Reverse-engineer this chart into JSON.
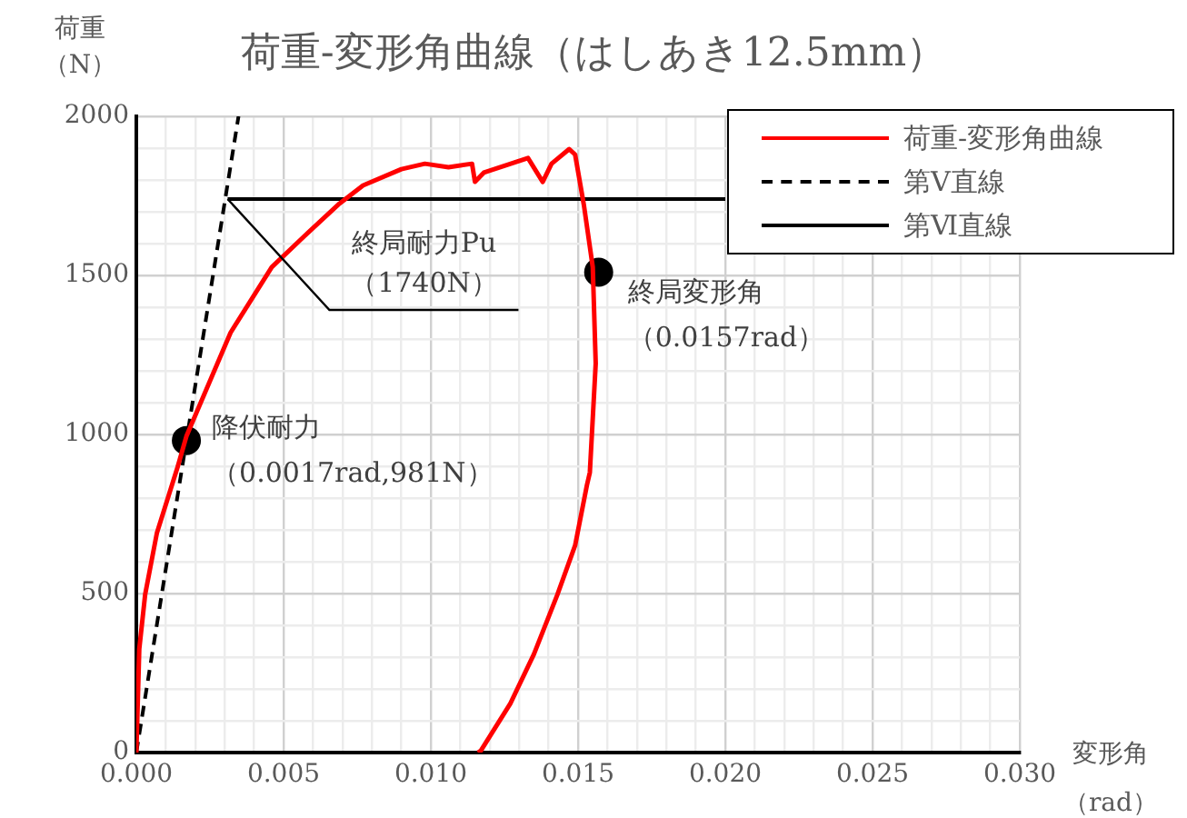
{
  "chart_data": {
    "type": "line",
    "title": "荷重-変形角曲線（はしあき12.5mm）",
    "xlabel": "変形角（rad）",
    "ylabel": "荷重（N）",
    "xlim": [
      0,
      0.03
    ],
    "xticks": [
      {
        "value": 0,
        "label": "0.000"
      },
      {
        "value": 0.001,
        "label": null
      },
      {
        "value": 0.002,
        "label": null
      },
      {
        "value": 0.003,
        "label": null
      },
      {
        "value": 0.004,
        "label": null
      },
      {
        "value": 0.005,
        "label": "0.005"
      },
      {
        "value": 0.006,
        "label": null
      },
      {
        "value": 0.007,
        "label": null
      },
      {
        "value": 0.008,
        "label": null
      },
      {
        "value": 0.009,
        "label": null
      },
      {
        "value": 0.01,
        "label": "0.010"
      },
      {
        "value": 0.011,
        "label": null
      },
      {
        "value": 0.012,
        "label": null
      },
      {
        "value": 0.013,
        "label": null
      },
      {
        "value": 0.014,
        "label": null
      },
      {
        "value": 0.015,
        "label": "0.015"
      },
      {
        "value": 0.016,
        "label": null
      },
      {
        "value": 0.017,
        "label": null
      },
      {
        "value": 0.018,
        "label": null
      },
      {
        "value": 0.019,
        "label": null
      },
      {
        "value": 0.02,
        "label": "0.020"
      },
      {
        "value": 0.021,
        "label": null
      },
      {
        "value": 0.022,
        "label": null
      },
      {
        "value": 0.023,
        "label": null
      },
      {
        "value": 0.024,
        "label": null
      },
      {
        "value": 0.025,
        "label": "0.025"
      },
      {
        "value": 0.026,
        "label": null
      },
      {
        "value": 0.027,
        "label": null
      },
      {
        "value": 0.028,
        "label": null
      },
      {
        "value": 0.029,
        "label": null
      },
      {
        "value": 0.03,
        "label": "0.030"
      }
    ],
    "ylim": [
      0,
      2000
    ],
    "yticks": [
      0,
      {
        "value": 100,
        "label": null
      },
      {
        "value": 200,
        "label": null
      },
      {
        "value": 300,
        "label": null
      },
      {
        "value": 400,
        "label": null
      },
      500,
      {
        "value": 600,
        "label": null
      },
      {
        "value": 700,
        "label": null
      },
      {
        "value": 800,
        "label": null
      },
      {
        "value": 900,
        "label": null
      },
      1000,
      {
        "value": 1100,
        "label": null
      },
      {
        "value": 1200,
        "label": null
      },
      {
        "value": 1300,
        "label": null
      },
      {
        "value": 1400,
        "label": null
      },
      1500,
      {
        "value": 1600,
        "label": null
      },
      {
        "value": 1700,
        "label": null
      },
      {
        "value": 1800,
        "label": null
      },
      {
        "value": 1900,
        "label": null
      },
      2000
    ],
    "grid": true,
    "legend": "top right",
    "marker": "none",
    "series": [
      {
        "name": "荷重-変形角曲線",
        "color": "#ff0000",
        "line_style": "solid",
        "x": [
          0,
          0.0001,
          0.0003,
          0.0007,
          0.0014,
          0.0017,
          0.0032,
          0.0046,
          0.0057,
          0.0069,
          0.0077,
          0.009,
          0.0098,
          0.0106,
          0.0114,
          0.0115,
          0.0118,
          0.0133,
          0.0138,
          0.0141,
          0.0147,
          0.0149,
          0.0152,
          0.0155,
          0.0156,
          0.0154,
          0.0153,
          0.0149,
          0.0143,
          0.0135,
          0.0127,
          0.0117,
          0.0116
        ],
        "values": [
          0,
          326,
          497,
          691,
          897,
          994,
          1320,
          1526,
          1623,
          1726,
          1783,
          1834,
          1851,
          1840,
          1851,
          1794,
          1823,
          1869,
          1794,
          1851,
          1897,
          1880,
          1720,
          1526,
          1223,
          880,
          840,
          651,
          497,
          309,
          154,
          6,
          0
        ]
      },
      {
        "name": "第Ⅴ直線",
        "color": "#000000",
        "line_style": "dashed",
        "x": [
          0,
          0.00347
        ],
        "values": [
          0,
          2000
        ]
      },
      {
        "name": "第Ⅵ直線",
        "color": "#000000",
        "line_style": "solid",
        "x": [
          0.0031,
          0.02
        ],
        "values": [
          1740,
          1740
        ]
      },
      {
        "type": "scatter",
        "color": "#000000",
        "marker": "circle",
        "x": [
          0.0017,
          0.0157
        ],
        "values": [
          981,
          1510
        ]
      }
    ],
    "annotations": [
      {
        "text": "降伏耐力（0.0017rad,981N）",
        "x": 0.0017,
        "y": 981
      },
      {
        "text": "終局耐力Pu（1740N）",
        "x": 0.0031,
        "y": 1740
      },
      {
        "text": "終局変形角（0.0157rad）",
        "x": 0.0157,
        "y": 1510
      }
    ]
  }
}
